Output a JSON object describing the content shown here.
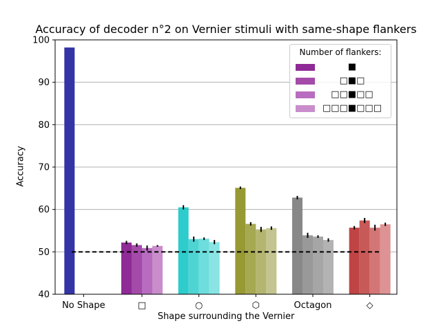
{
  "chart_data": {
    "type": "bar",
    "title": "Accuracy of decoder n°2 on Vernier stimuli with same-shape flankers",
    "xlabel": "Shape surrounding the Vernier",
    "ylabel": "Accuracy",
    "ylim": [
      40,
      100
    ],
    "yticks": [
      40,
      50,
      60,
      70,
      80,
      90,
      100
    ],
    "categories": [
      "No Shape",
      "□",
      "○",
      "⬡",
      "Octagon",
      "◇"
    ],
    "chance_level": 50,
    "grid": "horizontal",
    "legend": {
      "title": "Number of flankers:",
      "position": "top-right",
      "entries": [
        "■",
        "□■□",
        "□□■□□",
        "□□□■□□□"
      ],
      "swatch_colors": [
        "#8f2a96",
        "#a44aa9",
        "#b86cbf",
        "#c98dcb"
      ]
    },
    "bar_colors": [
      [
        "#3434a6"
      ],
      [
        "#8f2a96",
        "#a44aa9",
        "#b86cbf",
        "#c98dcb"
      ],
      [
        "#2ecccc",
        "#4fd4d4",
        "#6ddddd",
        "#8ae4e4"
      ],
      [
        "#979a32",
        "#a6a852",
        "#b4b670",
        "#c3c48f"
      ],
      [
        "#888888",
        "#999999",
        "#a6a6a6",
        "#b3b3b3"
      ],
      [
        "#c04444",
        "#c85959",
        "#d47676",
        "#dd9393"
      ]
    ],
    "series": [
      {
        "values": [
          98.2,
          52.2,
          60.5,
          65.1,
          62.8,
          55.7
        ],
        "errors": [
          0,
          0.4,
          0.5,
          0.3,
          0.4,
          0.4
        ]
      },
      {
        "values": [
          null,
          51.6,
          53.0,
          56.6,
          53.9,
          57.4
        ],
        "errors": [
          0,
          0.4,
          0.6,
          0.4,
          0.6,
          0.6
        ]
      },
      {
        "values": [
          null,
          50.9,
          53.1,
          55.3,
          53.6,
          55.7
        ],
        "errors": [
          0,
          0.6,
          0.3,
          0.6,
          0.3,
          0.7
        ]
      },
      {
        "values": [
          null,
          51.4,
          52.3,
          55.6,
          52.8,
          56.5
        ],
        "errors": [
          0,
          0.2,
          0.5,
          0.4,
          0.4,
          0.4
        ]
      }
    ]
  }
}
